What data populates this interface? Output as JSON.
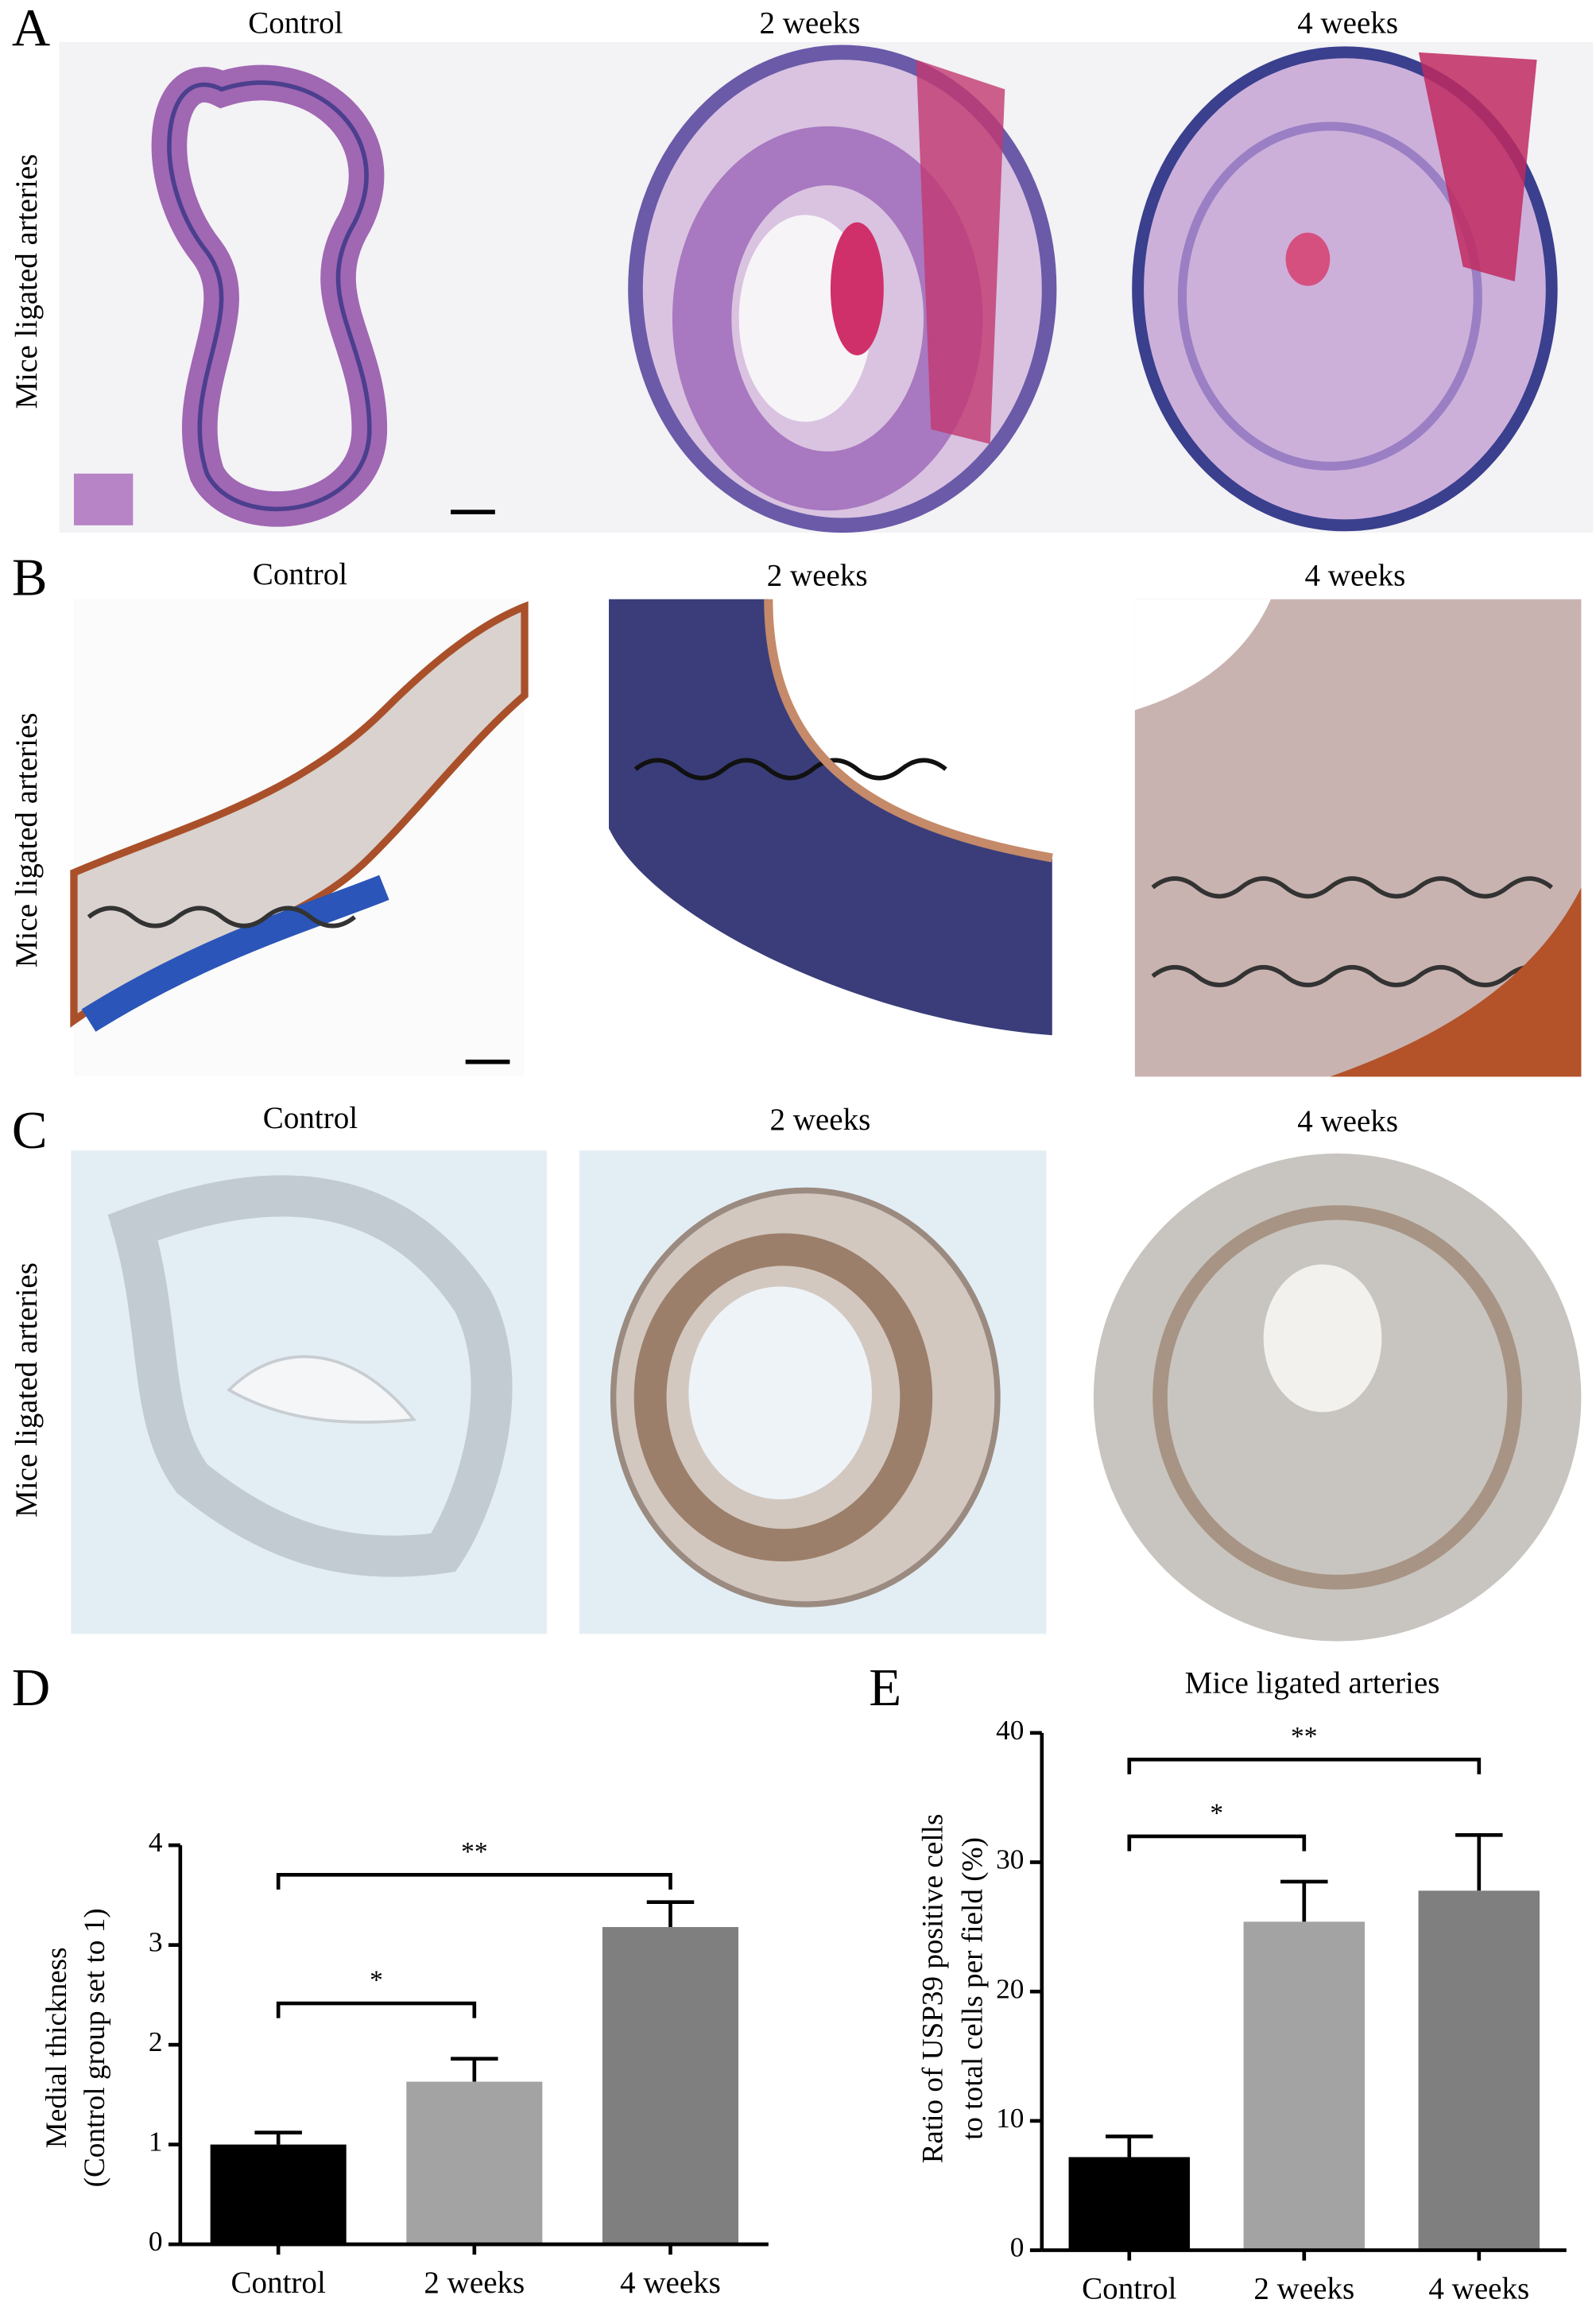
{
  "panels": [
    {
      "letter": "A",
      "row_label": "Mice ligated arteries",
      "columns": [
        "Control",
        "2 weeks",
        "4 weeks"
      ]
    },
    {
      "letter": "B",
      "row_label": "Mice ligated arteries",
      "columns": [
        "Control",
        "2 weeks",
        "4 weeks"
      ]
    },
    {
      "letter": "C",
      "row_label": "Mice ligated arteries",
      "columns": [
        "Control",
        "2 weeks",
        "4 weeks"
      ]
    }
  ],
  "chart_data": [
    {
      "type": "bar",
      "panel": "D",
      "ylabel": [
        "Medial thickness",
        "(Control group set to 1)"
      ],
      "categories": [
        "Control",
        "2 weeks",
        "4 weeks"
      ],
      "values": [
        1.0,
        1.63,
        3.18
      ],
      "errors": [
        0.12,
        0.23,
        0.25
      ],
      "colors": [
        "#000000",
        "#a3a3a3",
        "#7f7f7f"
      ],
      "ylim": [
        0,
        4
      ],
      "yticks": [
        0,
        1,
        2,
        3,
        4
      ],
      "annotations": [
        "*",
        "**"
      ]
    },
    {
      "type": "bar",
      "panel": "E",
      "title": "Mice ligated arteries",
      "ylabel": [
        "Ratio of USP39 positive cells",
        "to total cells per field (%)"
      ],
      "categories": [
        "Control",
        "2 weeks",
        "4 weeks"
      ],
      "values": [
        7.2,
        25.4,
        27.8
      ],
      "errors": [
        1.6,
        3.1,
        4.3
      ],
      "colors": [
        "#000000",
        "#a3a3a3",
        "#7f7f7f"
      ],
      "ylim": [
        0,
        40
      ],
      "yticks": [
        0,
        10,
        20,
        30,
        40
      ],
      "annotations": [
        "*",
        "**"
      ]
    }
  ]
}
